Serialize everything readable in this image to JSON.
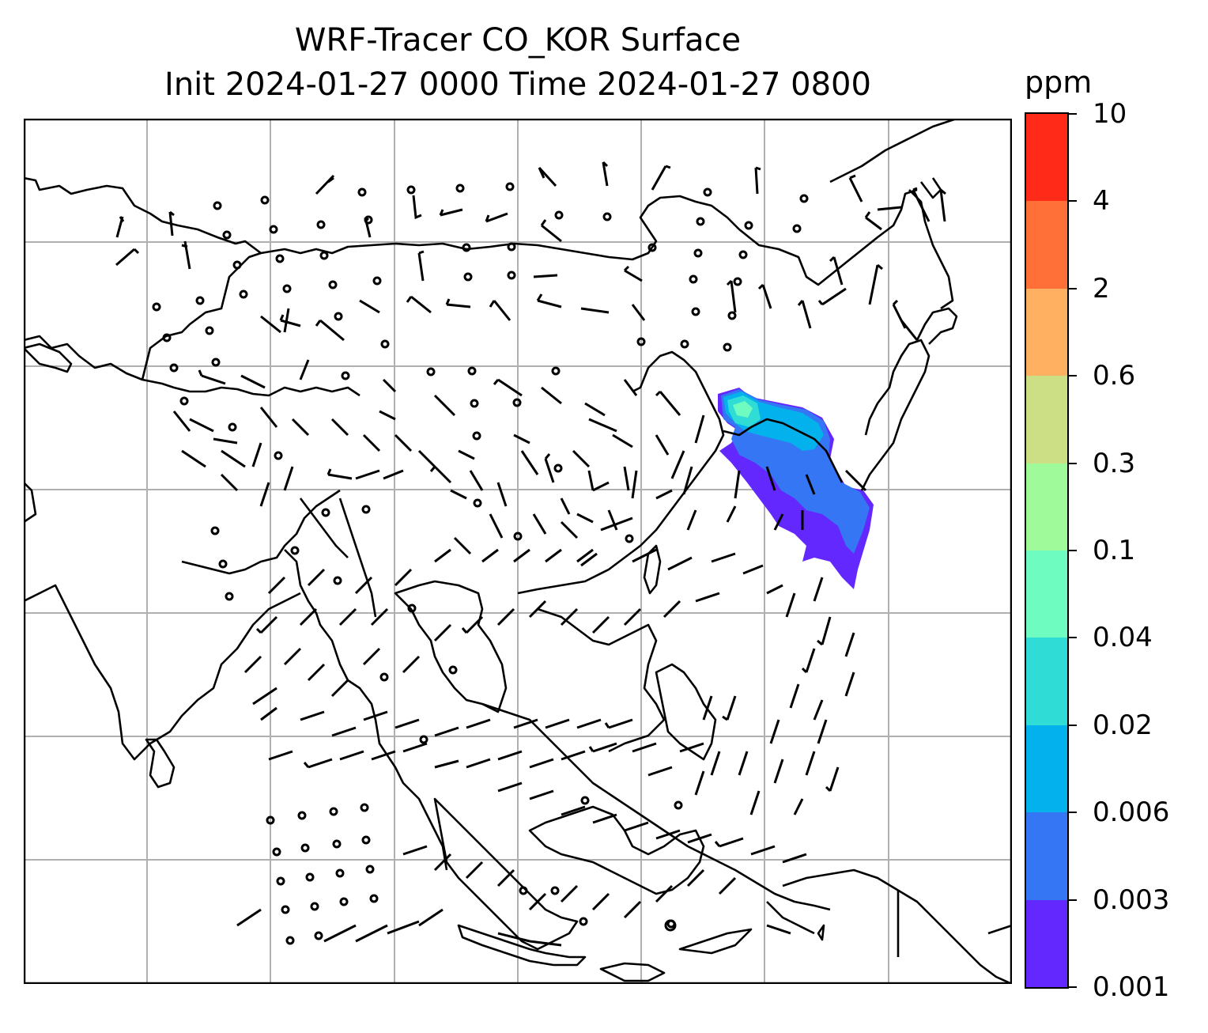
{
  "title": {
    "line1": "WRF-Tracer CO_KOR Surface",
    "line2": "Init 2024-01-27 0000 Time 2024-01-27 0800"
  },
  "colorbar": {
    "unit": "ppm",
    "levels": [
      "0.001",
      "0.003",
      "0.006",
      "0.02",
      "0.04",
      "0.1",
      "0.3",
      "0.6",
      "2",
      "4",
      "10"
    ],
    "colors": [
      "#6328fe",
      "#3576f4",
      "#03b1ed",
      "#30dcd6",
      "#6ffcc1",
      "#9ffb99",
      "#ccdf84",
      "#ffb060",
      "#ff7038",
      "#ff2a17"
    ]
  },
  "map": {
    "grid": true,
    "features": [
      "coastlines",
      "country borders",
      "wind barbs",
      "tracer concentration shading over Korea and northeast China"
    ]
  }
}
